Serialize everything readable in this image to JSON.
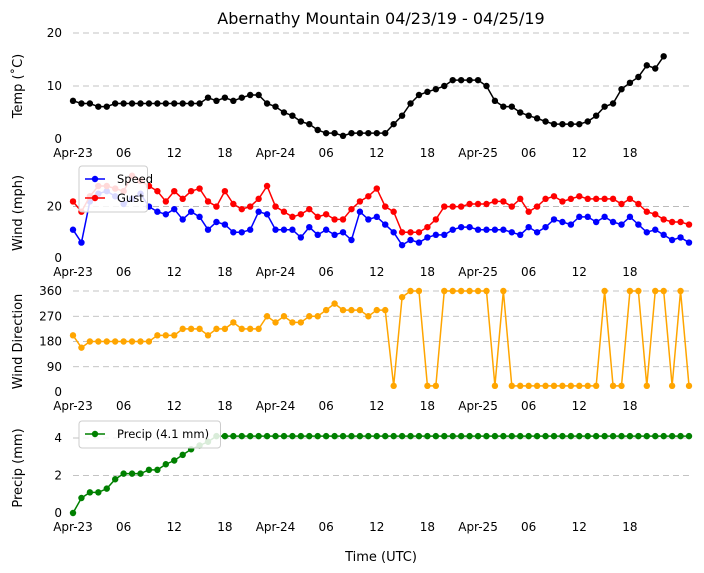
{
  "chart_data": [
    {
      "type": "line",
      "title": "Abernathy Mountain 04/23/19 - 04/25/19",
      "ylabel": "Temp (˚C)",
      "ylim": [
        0,
        20
      ],
      "yticks": [
        0,
        10,
        20
      ],
      "grid": true,
      "legend": null,
      "xticks": [
        {
          "hour": 0,
          "label": "Apr-23"
        },
        {
          "hour": 6,
          "label": "06"
        },
        {
          "hour": 12,
          "label": "12"
        },
        {
          "hour": 18,
          "label": "18"
        },
        {
          "hour": 24,
          "label": "Apr-24"
        },
        {
          "hour": 30,
          "label": "06"
        },
        {
          "hour": 36,
          "label": "12"
        },
        {
          "hour": 42,
          "label": "18"
        },
        {
          "hour": 48,
          "label": "Apr-25"
        },
        {
          "hour": 54,
          "label": "06"
        },
        {
          "hour": 60,
          "label": "12"
        },
        {
          "hour": 66,
          "label": "18"
        }
      ],
      "series": [
        {
          "name": "Temp",
          "color": "#000000",
          "values": [
            7.2,
            6.7,
            6.7,
            6.1,
            6.1,
            6.7,
            6.7,
            6.7,
            6.7,
            6.7,
            6.7,
            6.7,
            6.7,
            6.7,
            6.7,
            6.7,
            7.8,
            7.2,
            7.8,
            7.2,
            7.8,
            8.3,
            8.3,
            6.7,
            6.1,
            5.0,
            4.4,
            3.3,
            2.8,
            1.7,
            1.1,
            1.1,
            0.6,
            1.1,
            1.1,
            1.1,
            1.1,
            1.1,
            2.8,
            4.4,
            6.7,
            8.3,
            8.9,
            9.4,
            10.0,
            11.1,
            11.1,
            11.1,
            11.1,
            10.0,
            7.2,
            6.1,
            6.1,
            5.0,
            4.4,
            3.9,
            3.3,
            2.8,
            2.8,
            2.8,
            2.8,
            3.3,
            4.4,
            6.1,
            6.7,
            9.4,
            10.6,
            11.7,
            13.9,
            13.3,
            15.6
          ]
        }
      ]
    },
    {
      "type": "line",
      "ylabel": "Wind (mph)",
      "ylim": [
        0,
        35
      ],
      "yticks": [
        0,
        20
      ],
      "grid": true,
      "legend": {
        "location": "top-left"
      },
      "xticks": [
        {
          "hour": 0,
          "label": "Apr-23"
        },
        {
          "hour": 6,
          "label": "06"
        },
        {
          "hour": 12,
          "label": "12"
        },
        {
          "hour": 18,
          "label": "18"
        },
        {
          "hour": 24,
          "label": "Apr-24"
        },
        {
          "hour": 30,
          "label": "06"
        },
        {
          "hour": 36,
          "label": "12"
        },
        {
          "hour": 42,
          "label": "18"
        },
        {
          "hour": 48,
          "label": "Apr-25"
        },
        {
          "hour": 54,
          "label": "06"
        },
        {
          "hour": 60,
          "label": "12"
        },
        {
          "hour": 66,
          "label": "18"
        }
      ],
      "series": [
        {
          "name": "Speed",
          "color": "#0000ff",
          "values": [
            11,
            6,
            22,
            25,
            26,
            24,
            21,
            23,
            25,
            20,
            18,
            17,
            19,
            15,
            18,
            16,
            11,
            14,
            13,
            10,
            10,
            11,
            18,
            17,
            11,
            11,
            11,
            8,
            12,
            9,
            11,
            9,
            10,
            7,
            18,
            15,
            16,
            13,
            10,
            5,
            7,
            6,
            8,
            9,
            9,
            11,
            12,
            12,
            11,
            11,
            11,
            11,
            10,
            9,
            12,
            10,
            12,
            15,
            14,
            13,
            16,
            16,
            14,
            16,
            14,
            13,
            16,
            13,
            10,
            11,
            9,
            7,
            8,
            6
          ]
        },
        {
          "name": "Gust",
          "color": "#ff0000",
          "values": [
            22,
            18,
            24,
            28,
            28,
            27,
            26,
            32,
            30,
            28,
            26,
            22,
            26,
            23,
            26,
            27,
            22,
            20,
            26,
            21,
            19,
            20,
            23,
            28,
            20,
            18,
            16,
            17,
            19,
            16,
            17,
            15,
            15,
            19,
            22,
            24,
            27,
            20,
            18,
            10,
            10,
            10,
            12,
            15,
            20,
            20,
            20,
            21,
            21,
            21,
            22,
            22,
            20,
            23,
            18,
            20,
            23,
            24,
            22,
            23,
            24,
            23,
            23,
            23,
            23,
            21,
            23,
            21,
            18,
            17,
            15,
            14,
            14,
            13
          ]
        }
      ]
    },
    {
      "type": "line",
      "ylabel": "Wind Direction",
      "ylim": [
        0,
        360
      ],
      "yticks": [
        0,
        90,
        180,
        270,
        360
      ],
      "grid": true,
      "legend": null,
      "xticks": [
        {
          "hour": 0,
          "label": "Apr-23"
        },
        {
          "hour": 6,
          "label": "06"
        },
        {
          "hour": 12,
          "label": "12"
        },
        {
          "hour": 18,
          "label": "18"
        },
        {
          "hour": 24,
          "label": "Apr-24"
        },
        {
          "hour": 30,
          "label": "06"
        },
        {
          "hour": 36,
          "label": "12"
        },
        {
          "hour": 42,
          "label": "18"
        },
        {
          "hour": 48,
          "label": "Apr-25"
        },
        {
          "hour": 54,
          "label": "06"
        },
        {
          "hour": 60,
          "label": "12"
        },
        {
          "hour": 66,
          "label": "18"
        }
      ],
      "series": [
        {
          "name": "Direction",
          "color": "#ffa500",
          "values": [
            202,
            158,
            180,
            180,
            180,
            180,
            180,
            180,
            180,
            180,
            202,
            202,
            202,
            225,
            225,
            225,
            202,
            225,
            225,
            248,
            225,
            225,
            225,
            270,
            248,
            270,
            248,
            248,
            270,
            270,
            292,
            315,
            292,
            292,
            292,
            270,
            292,
            292,
            22,
            338,
            360,
            360,
            22,
            22,
            360,
            360,
            360,
            360,
            360,
            360,
            22,
            360,
            22,
            22,
            22,
            22,
            22,
            22,
            22,
            22,
            22,
            22,
            22,
            360,
            22,
            22,
            360,
            360,
            22,
            360,
            360,
            22,
            360,
            22
          ]
        }
      ]
    },
    {
      "type": "line",
      "ylabel": "Precip (mm)",
      "xlabel": "Time (UTC)",
      "ylim": [
        0,
        4.8
      ],
      "yticks": [
        0,
        2,
        4
      ],
      "grid": true,
      "legend": {
        "location": "top-left"
      },
      "xticks": [
        {
          "hour": 0,
          "label": "Apr-23"
        },
        {
          "hour": 6,
          "label": "06"
        },
        {
          "hour": 12,
          "label": "12"
        },
        {
          "hour": 18,
          "label": "18"
        },
        {
          "hour": 24,
          "label": "Apr-24"
        },
        {
          "hour": 30,
          "label": "06"
        },
        {
          "hour": 36,
          "label": "12"
        },
        {
          "hour": 42,
          "label": "18"
        },
        {
          "hour": 48,
          "label": "Apr-25"
        },
        {
          "hour": 54,
          "label": "06"
        },
        {
          "hour": 60,
          "label": "12"
        },
        {
          "hour": 66,
          "label": "18"
        }
      ],
      "series": [
        {
          "name": "Precip (4.1 mm)",
          "color": "#008000",
          "values": [
            0,
            0.8,
            1.1,
            1.1,
            1.3,
            1.8,
            2.1,
            2.1,
            2.1,
            2.3,
            2.3,
            2.6,
            2.8,
            3.1,
            3.4,
            3.6,
            3.8,
            4.1,
            4.1,
            4.1,
            4.1,
            4.1,
            4.1,
            4.1,
            4.1,
            4.1,
            4.1,
            4.1,
            4.1,
            4.1,
            4.1,
            4.1,
            4.1,
            4.1,
            4.1,
            4.1,
            4.1,
            4.1,
            4.1,
            4.1,
            4.1,
            4.1,
            4.1,
            4.1,
            4.1,
            4.1,
            4.1,
            4.1,
            4.1,
            4.1,
            4.1,
            4.1,
            4.1,
            4.1,
            4.1,
            4.1,
            4.1,
            4.1,
            4.1,
            4.1,
            4.1,
            4.1,
            4.1,
            4.1,
            4.1,
            4.1,
            4.1,
            4.1,
            4.1,
            4.1,
            4.1,
            4.1,
            4.1,
            4.1
          ]
        }
      ]
    }
  ]
}
